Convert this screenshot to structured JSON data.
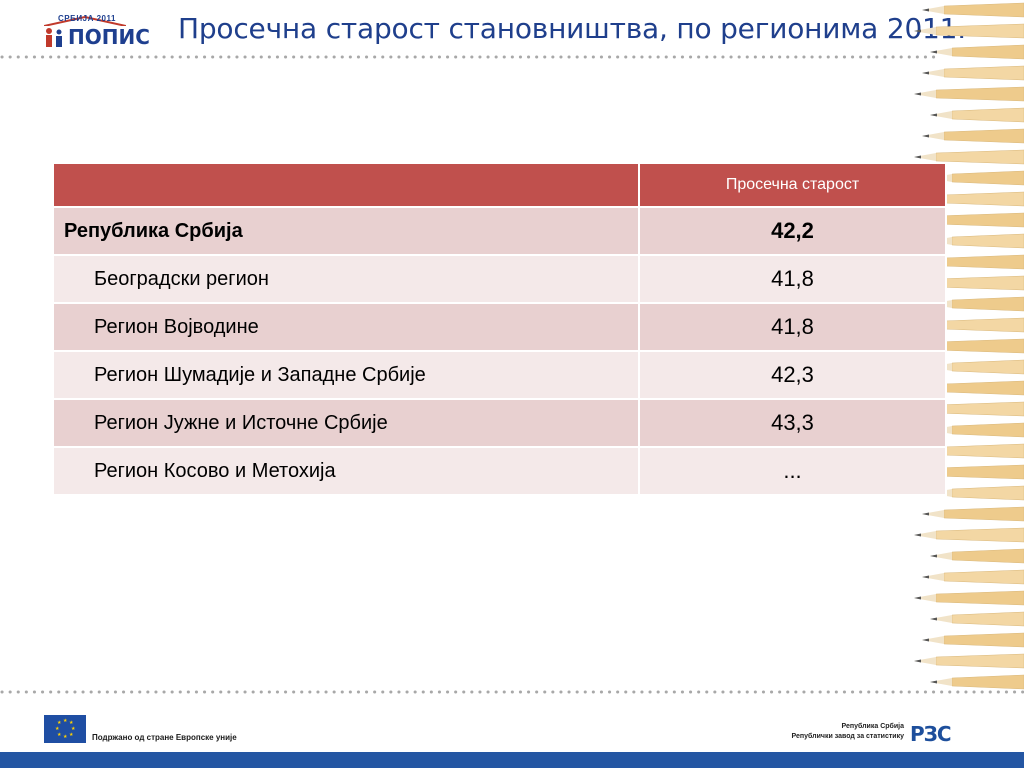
{
  "logo": {
    "top_text": "СРБИЈА 2011",
    "word": "ПОПИС"
  },
  "title": "Просечна старост становништва, по регионима 2011.",
  "table": {
    "header": {
      "name": "",
      "value": "Просечна старост"
    },
    "rows": [
      {
        "name": "Република Србија",
        "value": "42,2"
      },
      {
        "name": "Београдски регион",
        "value": "41,8"
      },
      {
        "name": "Регион Војводине",
        "value": "41,8"
      },
      {
        "name": "Регион Шумадије и Западне Србије",
        "value": "42,3"
      },
      {
        "name": "Регион Јужне и Источне Србије",
        "value": "43,3"
      },
      {
        "name": "Регион Косово и Метохија",
        "value": "..."
      }
    ]
  },
  "footer": {
    "eu_text": "Подржано од стране Европске уније",
    "rzs_line1": "Република Србија",
    "rzs_line2": "Републички завод за статистику",
    "rzs_logo": "РЗС"
  },
  "colors": {
    "header": "#c0504d",
    "row_odd": "#e8d0d0",
    "row_even": "#f4e9e9",
    "title": "#1f3f8c"
  }
}
